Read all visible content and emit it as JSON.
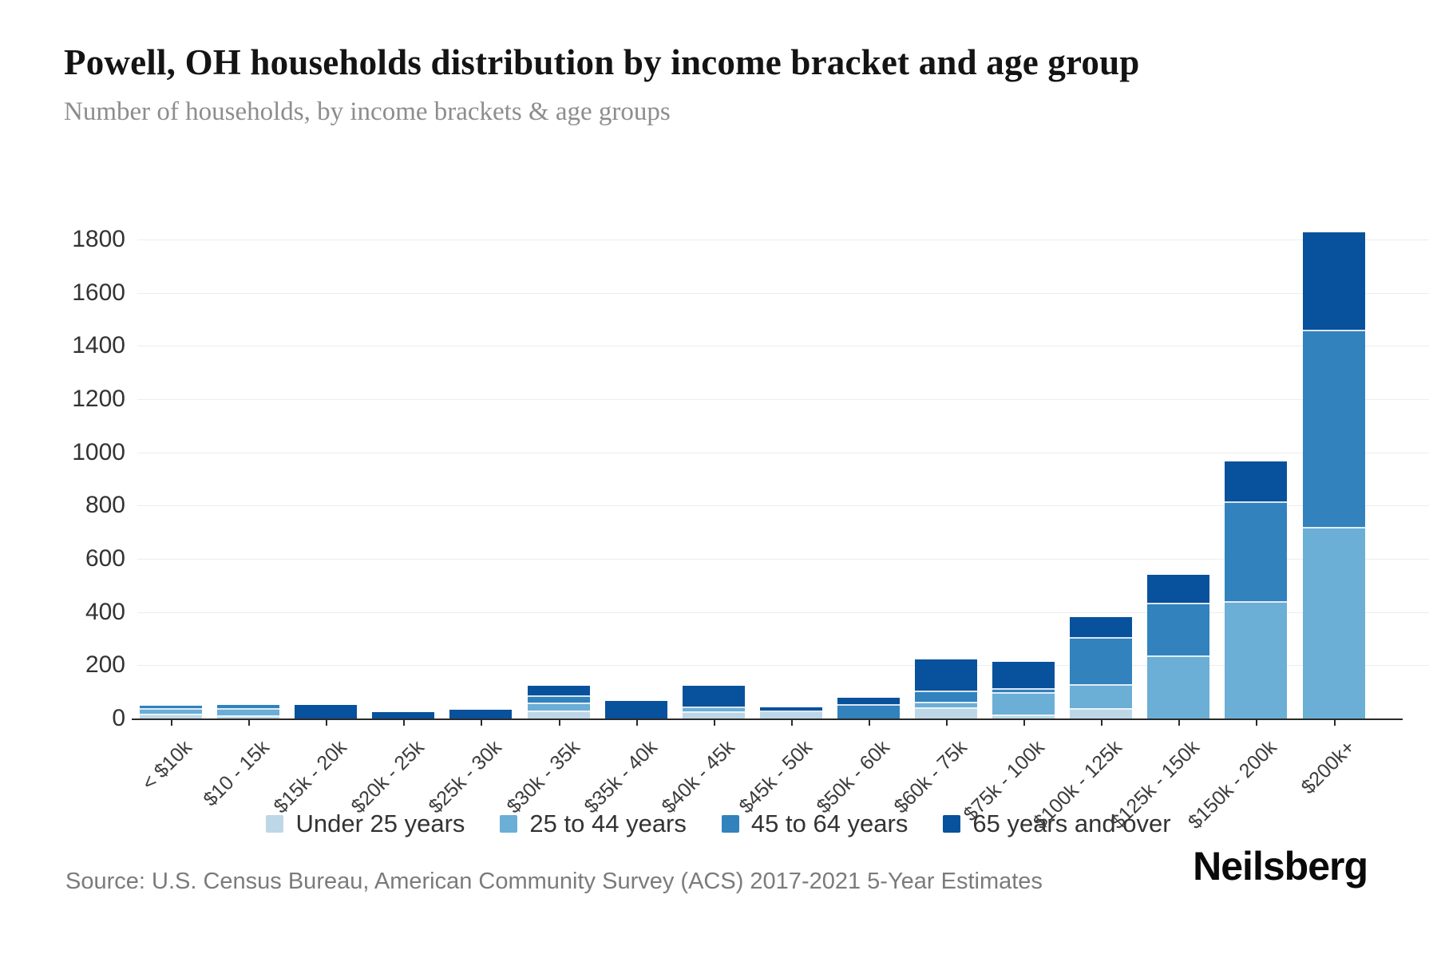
{
  "header": {
    "title": "Powell, OH households distribution by income bracket and age group",
    "subtitle": "Number of households, by income brackets & age groups"
  },
  "footer": {
    "source": "Source: U.S. Census Bureau, American Community Survey (ACS) 2017-2021 5-Year Estimates",
    "brand": "Neilsberg"
  },
  "colors": {
    "under_25": "#bdd7e7",
    "age_25_44": "#6baed6",
    "age_45_64": "#3182bd",
    "age_65_over": "#08519c",
    "axis_line": "#2b2b2b",
    "gridline": "#ededed",
    "text_dark": "#333333",
    "text_muted": "#7b7b7b"
  },
  "chart_data": {
    "type": "bar",
    "stacked": true,
    "title": "Powell, OH households distribution by income bracket and age group",
    "subtitle": "Number of households, by income brackets & age groups",
    "xlabel": "",
    "ylabel": "",
    "ylim": [
      0,
      1800
    ],
    "yticks": [
      0,
      200,
      400,
      600,
      800,
      1000,
      1200,
      1400,
      1600,
      1800
    ],
    "grid": "horizontal",
    "legend_position": "bottom",
    "categories": [
      "< $10k",
      "$10 - 15k",
      "$15k - 20k",
      "$20k - 25k",
      "$25k - 30k",
      "$30k - 35k",
      "$35k - 40k",
      "$40k - 45k",
      "$45k - 50k",
      "$50k - 60k",
      "$60k - 75k",
      "$75k - 100k",
      "$100k - 125k",
      "$125k - 150k",
      "$150k - 200k",
      "$200k+"
    ],
    "series": [
      {
        "name": "Under 25 years",
        "color": "#bdd7e7",
        "values": [
          12,
          6,
          0,
          0,
          0,
          25,
          0,
          20,
          24,
          0,
          35,
          10,
          33,
          0,
          0,
          0
        ]
      },
      {
        "name": "25 to 44 years",
        "color": "#6baed6",
        "values": [
          14,
          21,
          0,
          0,
          0,
          22,
          0,
          12,
          0,
          0,
          15,
          76,
          85,
          230,
          435,
          715
        ]
      },
      {
        "name": "45 to 64 years",
        "color": "#3182bd",
        "values": [
          10,
          11,
          0,
          0,
          0,
          22,
          0,
          0,
          0,
          47,
          36,
          10,
          170,
          193,
          370,
          735
        ]
      },
      {
        "name": "65 years and over",
        "color": "#08519c",
        "values": [
          0,
          0,
          52,
          25,
          33,
          36,
          65,
          80,
          12,
          25,
          119,
          99,
          75,
          105,
          150,
          365
        ]
      }
    ]
  }
}
